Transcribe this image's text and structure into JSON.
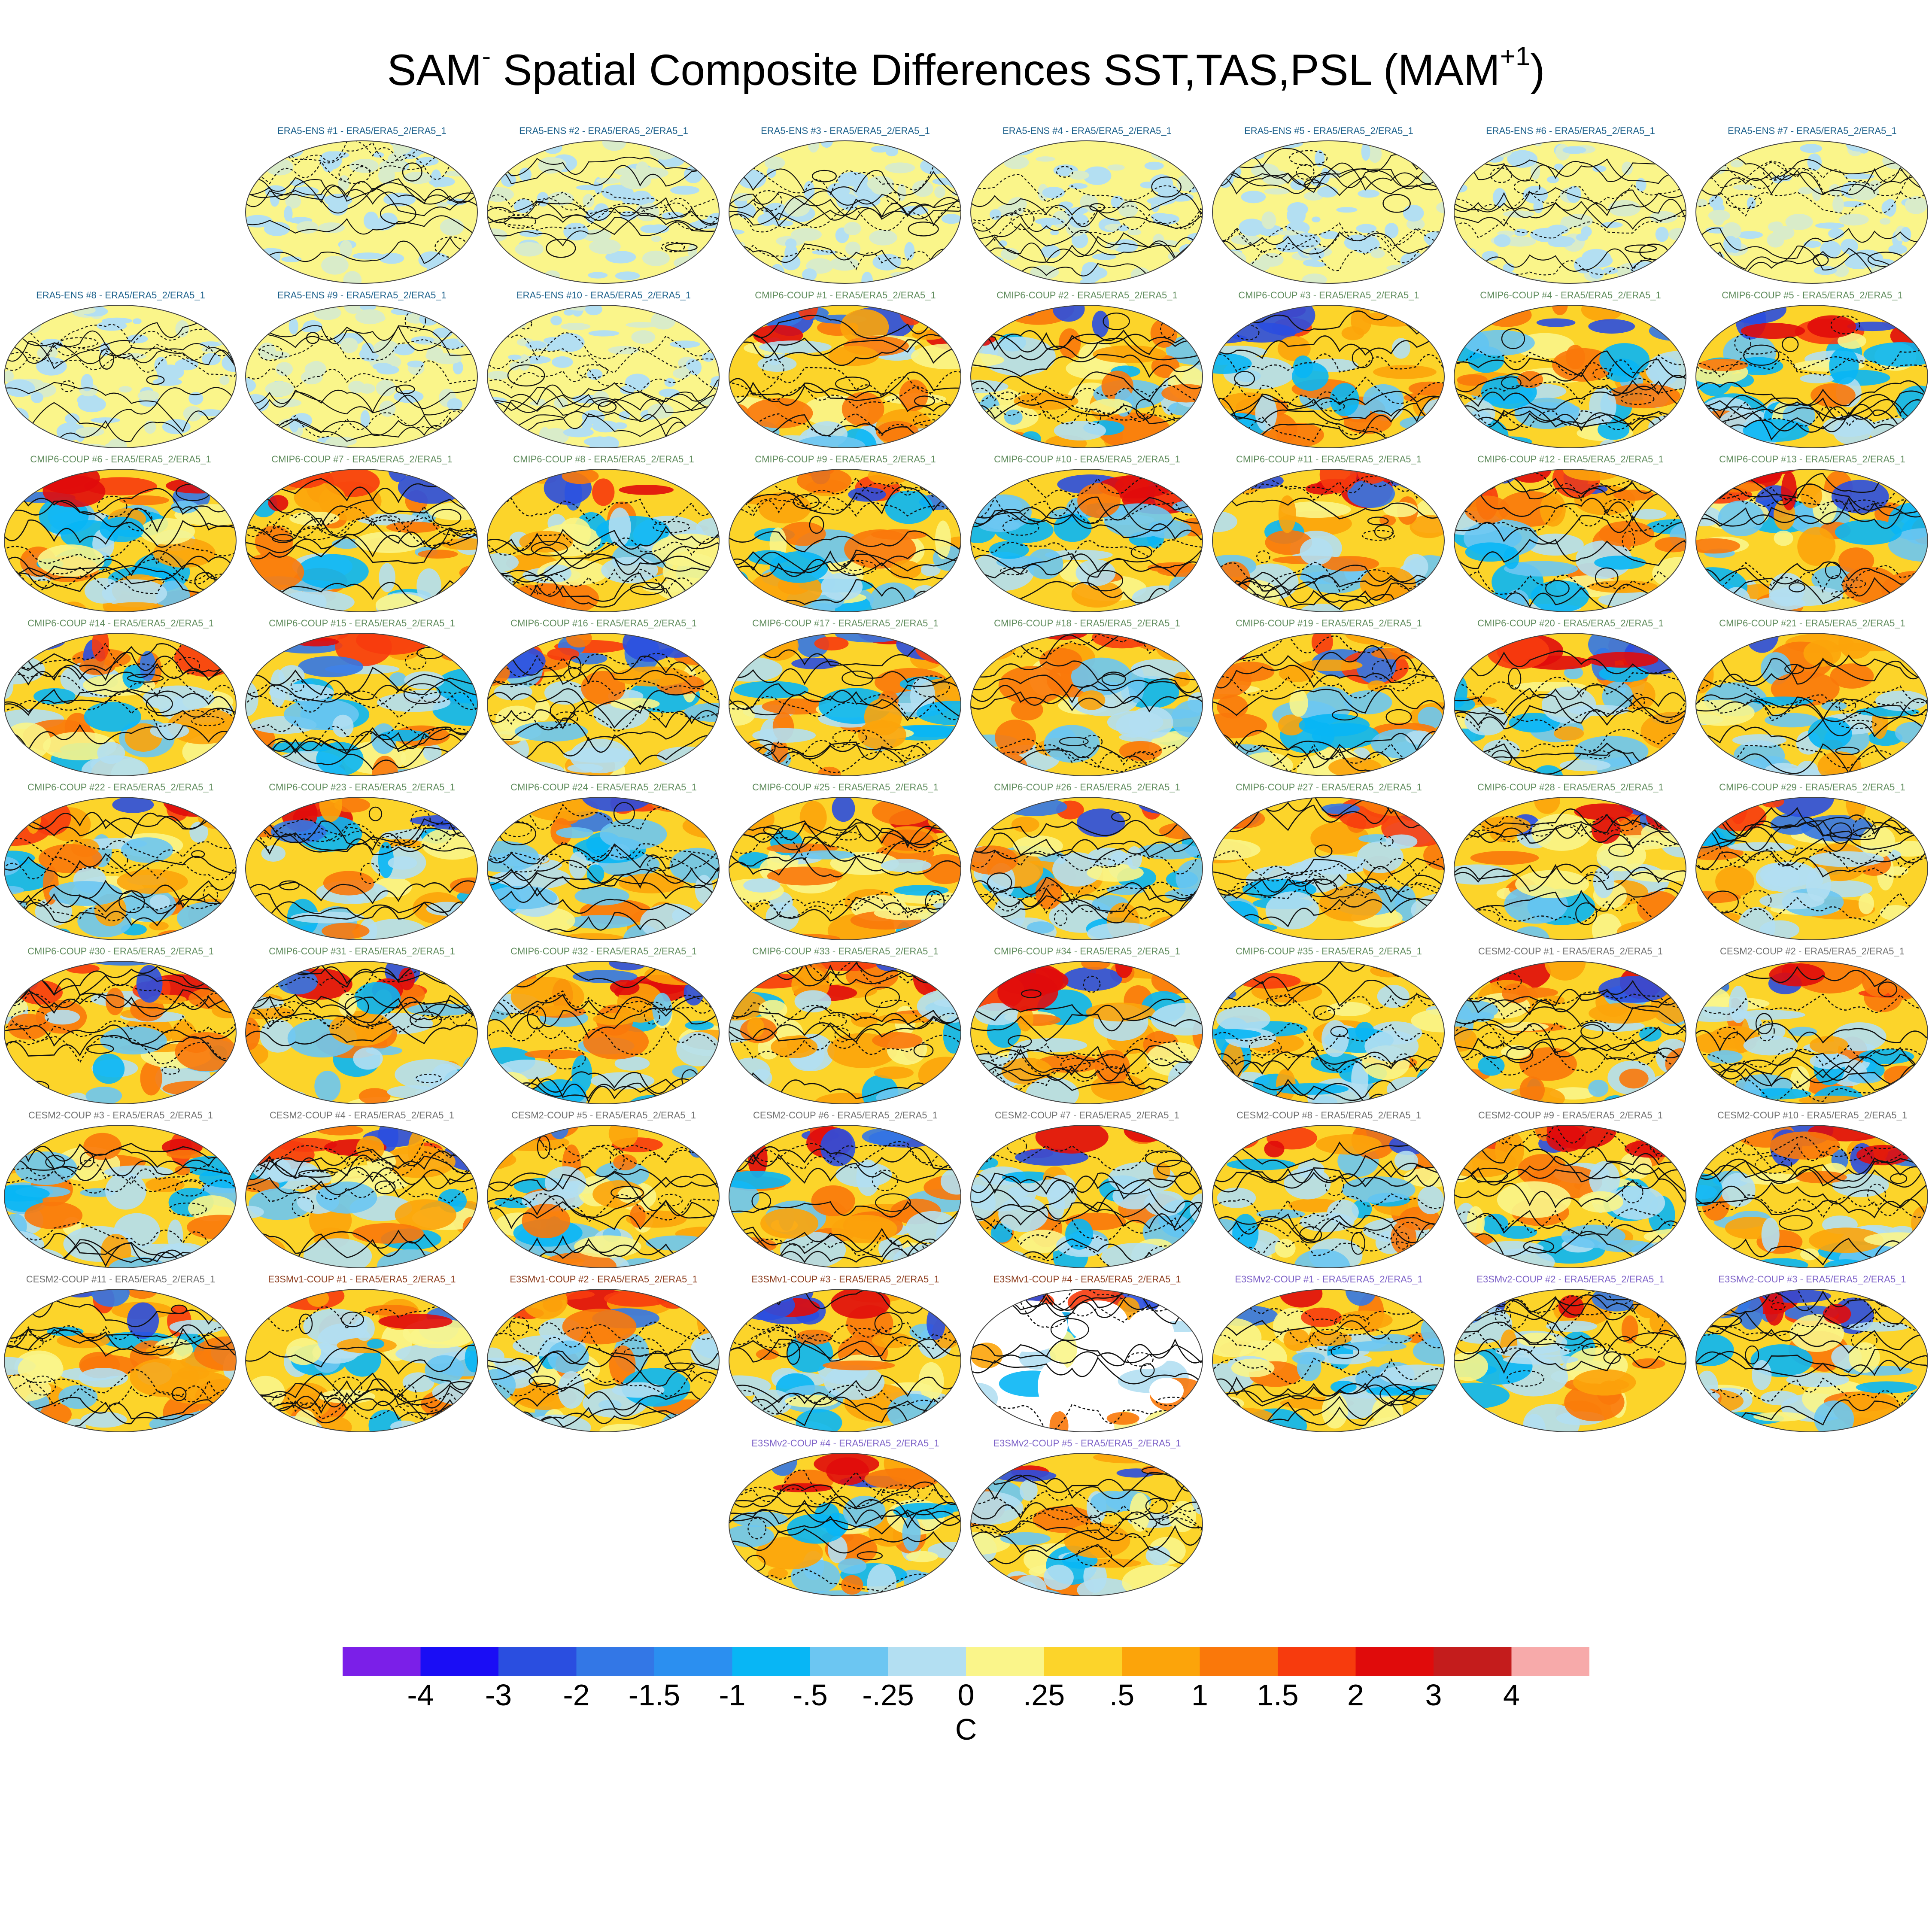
{
  "title": {
    "prefix": "SAM",
    "prefix_sup": "-",
    "main": " Spatial Composite Differences SST,TAS,PSL (MAM",
    "sup": "+1",
    "suffix": ")"
  },
  "panels": [
    {
      "label": "ERA5-ENS   #1 - ERA5/ERA5_2/ERA5_1",
      "group": "ERA5-ENS"
    },
    {
      "label": "ERA5-ENS   #2 - ERA5/ERA5_2/ERA5_1",
      "group": "ERA5-ENS"
    },
    {
      "label": "ERA5-ENS   #3 - ERA5/ERA5_2/ERA5_1",
      "group": "ERA5-ENS"
    },
    {
      "label": "ERA5-ENS   #4 - ERA5/ERA5_2/ERA5_1",
      "group": "ERA5-ENS"
    },
    {
      "label": "ERA5-ENS   #5 - ERA5/ERA5_2/ERA5_1",
      "group": "ERA5-ENS"
    },
    {
      "label": "ERA5-ENS   #6 - ERA5/ERA5_2/ERA5_1",
      "group": "ERA5-ENS"
    },
    {
      "label": "ERA5-ENS   #7 - ERA5/ERA5_2/ERA5_1",
      "group": "ERA5-ENS"
    },
    {
      "label": "ERA5-ENS   #8 - ERA5/ERA5_2/ERA5_1",
      "group": "ERA5-ENS"
    },
    {
      "label": "ERA5-ENS   #9 - ERA5/ERA5_2/ERA5_1",
      "group": "ERA5-ENS"
    },
    {
      "label": "ERA5-ENS   #10 - ERA5/ERA5_2/ERA5_1",
      "group": "ERA5-ENS"
    },
    {
      "label": "CMIP6-COUP  #1 - ERA5/ERA5_2/ERA5_1",
      "group": "CMIP6-COUP"
    },
    {
      "label": "CMIP6-COUP  #2 - ERA5/ERA5_2/ERA5_1",
      "group": "CMIP6-COUP"
    },
    {
      "label": "CMIP6-COUP  #3 - ERA5/ERA5_2/ERA5_1",
      "group": "CMIP6-COUP"
    },
    {
      "label": "CMIP6-COUP  #4 - ERA5/ERA5_2/ERA5_1",
      "group": "CMIP6-COUP"
    },
    {
      "label": "CMIP6-COUP  #5 - ERA5/ERA5_2/ERA5_1",
      "group": "CMIP6-COUP"
    },
    {
      "label": "CMIP6-COUP  #6 - ERA5/ERA5_2/ERA5_1",
      "group": "CMIP6-COUP"
    },
    {
      "label": "CMIP6-COUP  #7 - ERA5/ERA5_2/ERA5_1",
      "group": "CMIP6-COUP"
    },
    {
      "label": "CMIP6-COUP  #8 - ERA5/ERA5_2/ERA5_1",
      "group": "CMIP6-COUP"
    },
    {
      "label": "CMIP6-COUP  #9 - ERA5/ERA5_2/ERA5_1",
      "group": "CMIP6-COUP"
    },
    {
      "label": "CMIP6-COUP  #10 - ERA5/ERA5_2/ERA5_1",
      "group": "CMIP6-COUP"
    },
    {
      "label": "CMIP6-COUP  #11 - ERA5/ERA5_2/ERA5_1",
      "group": "CMIP6-COUP"
    },
    {
      "label": "CMIP6-COUP  #12 - ERA5/ERA5_2/ERA5_1",
      "group": "CMIP6-COUP"
    },
    {
      "label": "CMIP6-COUP  #13 - ERA5/ERA5_2/ERA5_1",
      "group": "CMIP6-COUP"
    },
    {
      "label": "CMIP6-COUP  #14 - ERA5/ERA5_2/ERA5_1",
      "group": "CMIP6-COUP"
    },
    {
      "label": "CMIP6-COUP  #15 - ERA5/ERA5_2/ERA5_1",
      "group": "CMIP6-COUP"
    },
    {
      "label": "CMIP6-COUP  #16 - ERA5/ERA5_2/ERA5_1",
      "group": "CMIP6-COUP"
    },
    {
      "label": "CMIP6-COUP  #17 - ERA5/ERA5_2/ERA5_1",
      "group": "CMIP6-COUP"
    },
    {
      "label": "CMIP6-COUP  #18 - ERA5/ERA5_2/ERA5_1",
      "group": "CMIP6-COUP"
    },
    {
      "label": "CMIP6-COUP  #19 - ERA5/ERA5_2/ERA5_1",
      "group": "CMIP6-COUP"
    },
    {
      "label": "CMIP6-COUP  #20 - ERA5/ERA5_2/ERA5_1",
      "group": "CMIP6-COUP"
    },
    {
      "label": "CMIP6-COUP  #21 - ERA5/ERA5_2/ERA5_1",
      "group": "CMIP6-COUP"
    },
    {
      "label": "CMIP6-COUP  #22 - ERA5/ERA5_2/ERA5_1",
      "group": "CMIP6-COUP"
    },
    {
      "label": "CMIP6-COUP  #23 - ERA5/ERA5_2/ERA5_1",
      "group": "CMIP6-COUP"
    },
    {
      "label": "CMIP6-COUP  #24 - ERA5/ERA5_2/ERA5_1",
      "group": "CMIP6-COUP"
    },
    {
      "label": "CMIP6-COUP  #25 - ERA5/ERA5_2/ERA5_1",
      "group": "CMIP6-COUP"
    },
    {
      "label": "CMIP6-COUP  #26 - ERA5/ERA5_2/ERA5_1",
      "group": "CMIP6-COUP"
    },
    {
      "label": "CMIP6-COUP  #27 - ERA5/ERA5_2/ERA5_1",
      "group": "CMIP6-COUP"
    },
    {
      "label": "CMIP6-COUP  #28 - ERA5/ERA5_2/ERA5_1",
      "group": "CMIP6-COUP"
    },
    {
      "label": "CMIP6-COUP  #29 - ERA5/ERA5_2/ERA5_1",
      "group": "CMIP6-COUP"
    },
    {
      "label": "CMIP6-COUP  #30 - ERA5/ERA5_2/ERA5_1",
      "group": "CMIP6-COUP"
    },
    {
      "label": "CMIP6-COUP  #31 - ERA5/ERA5_2/ERA5_1",
      "group": "CMIP6-COUP"
    },
    {
      "label": "CMIP6-COUP  #32 - ERA5/ERA5_2/ERA5_1",
      "group": "CMIP6-COUP"
    },
    {
      "label": "CMIP6-COUP  #33 - ERA5/ERA5_2/ERA5_1",
      "group": "CMIP6-COUP"
    },
    {
      "label": "CMIP6-COUP  #34 - ERA5/ERA5_2/ERA5_1",
      "group": "CMIP6-COUP"
    },
    {
      "label": "CMIP6-COUP  #35 - ERA5/ERA5_2/ERA5_1",
      "group": "CMIP6-COUP"
    },
    {
      "label": "CESM2-COUP  #1 - ERA5/ERA5_2/ERA5_1",
      "group": "CESM2-COUP"
    },
    {
      "label": "CESM2-COUP  #2 - ERA5/ERA5_2/ERA5_1",
      "group": "CESM2-COUP"
    },
    {
      "label": "CESM2-COUP  #3 - ERA5/ERA5_2/ERA5_1",
      "group": "CESM2-COUP"
    },
    {
      "label": "CESM2-COUP  #4 - ERA5/ERA5_2/ERA5_1",
      "group": "CESM2-COUP"
    },
    {
      "label": "CESM2-COUP  #5 - ERA5/ERA5_2/ERA5_1",
      "group": "CESM2-COUP"
    },
    {
      "label": "CESM2-COUP  #6 - ERA5/ERA5_2/ERA5_1",
      "group": "CESM2-COUP"
    },
    {
      "label": "CESM2-COUP  #7 - ERA5/ERA5_2/ERA5_1",
      "group": "CESM2-COUP"
    },
    {
      "label": "CESM2-COUP  #8 - ERA5/ERA5_2/ERA5_1",
      "group": "CESM2-COUP"
    },
    {
      "label": "CESM2-COUP  #9 - ERA5/ERA5_2/ERA5_1",
      "group": "CESM2-COUP"
    },
    {
      "label": "CESM2-COUP  #10 - ERA5/ERA5_2/ERA5_1",
      "group": "CESM2-COUP"
    },
    {
      "label": "CESM2-COUP  #11 - ERA5/ERA5_2/ERA5_1",
      "group": "CESM2-COUP"
    },
    {
      "label": "E3SMv1-COUP #1 - ERA5/ERA5_2/ERA5_1",
      "group": "E3SMv1-COUP"
    },
    {
      "label": "E3SMv1-COUP #2 - ERA5/ERA5_2/ERA5_1",
      "group": "E3SMv1-COUP"
    },
    {
      "label": "E3SMv1-COUP #3 - ERA5/ERA5_2/ERA5_1",
      "group": "E3SMv1-COUP"
    },
    {
      "label": "E3SMv1-COUP #4 - ERA5/ERA5_2/ERA5_1",
      "group": "E3SMv1-COUP",
      "land_masked": true
    },
    {
      "label": "E3SMv2-COUP #1 - ERA5/ERA5_2/ERA5_1",
      "group": "E3SMv2-COUP"
    },
    {
      "label": "E3SMv2-COUP #2 - ERA5/ERA5_2/ERA5_1",
      "group": "E3SMv2-COUP"
    },
    {
      "label": "E3SMv2-COUP #3 - ERA5/ERA5_2/ERA5_1",
      "group": "E3SMv2-COUP"
    },
    {
      "label": "E3SMv2-COUP #4 - ERA5/ERA5_2/ERA5_1",
      "group": "E3SMv2-COUP"
    },
    {
      "label": "E3SMv2-COUP #5 - ERA5/ERA5_2/ERA5_1",
      "group": "E3SMv2-COUP"
    }
  ],
  "group_colors": {
    "ERA5-ENS": "#1a5f8a",
    "CMIP6-COUP": "#5d8a5a",
    "CESM2-COUP": "#6e6e6e",
    "E3SMv1-COUP": "#8b3a1a",
    "E3SMv2-COUP": "#7b5fc7"
  },
  "colorbar": {
    "colors": [
      "#7b1fe8",
      "#1a0df5",
      "#2a4ee0",
      "#3377e6",
      "#2b8ff0",
      "#08b6f5",
      "#6cc6f2",
      "#b3dff2",
      "#faf58a",
      "#fcd42a",
      "#fca40a",
      "#fa780a",
      "#f73b0d",
      "#e00b0b",
      "#c41c1c",
      "#f7aaaa"
    ],
    "tick_labels": [
      "-4",
      "-3",
      "-2",
      "-1.5",
      "-1",
      "-.5",
      "-.25",
      "0",
      ".25",
      ".5",
      "1",
      "1.5",
      "2",
      "3",
      "4"
    ],
    "units": "C"
  }
}
